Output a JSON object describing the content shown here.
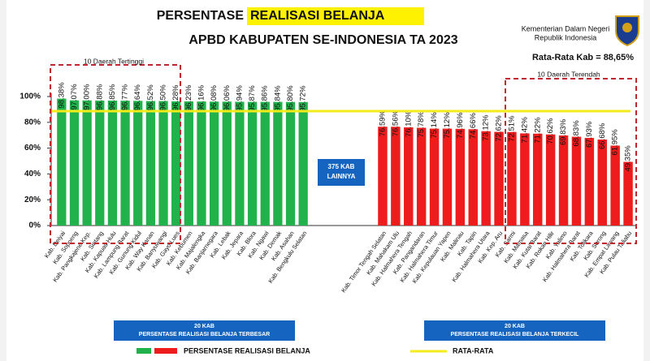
{
  "chart_data": {
    "type": "bar",
    "title": "PERSENTASE",
    "title_highlight": "REALISASI BELANJA",
    "subtitle": "APBD KABUPATEN SE-INDONESIA TA 2023",
    "org": [
      "Kementerian Dalam Negeri",
      "Republik Indonesia"
    ],
    "average": 88.65,
    "average_label": "Rata-Rata Kab = 88,65%",
    "average_color": "#f4ec1a",
    "ylim": [
      0,
      100
    ],
    "yticks": [
      {
        "value": 0,
        "label": "0%"
      },
      {
        "value": 20,
        "label": "20%"
      },
      {
        "value": 40,
        "label": "40%"
      },
      {
        "value": 60,
        "label": "60%"
      },
      {
        "value": 80,
        "label": "80%"
      },
      {
        "value": 100,
        "label": "100%"
      }
    ],
    "middle_note": [
      "375 KAB",
      "LAINNYA"
    ],
    "legend": [
      "PERSENTASE REALISASI BELANJA",
      "RATA-RATA"
    ],
    "groups": [
      {
        "color": "#22b24c",
        "highlight_label": "10 Daerah Tertinggi",
        "caption": [
          "20 KAB",
          "PERSENTASE REALISASI BELANJA TERBESAR"
        ],
        "categories": [
          "Kab. Deiyai",
          "Kab. Soppeng",
          "Kab. Pangkajene Kep.",
          "Kab. Sintang",
          "Kab. Kapuas Hulu",
          "Kab. Lampung Barat",
          "Kab. Gunung Kidul",
          "Kab. Way Kanan",
          "Kab. Banyuwangi",
          "Kab. Gayo Lues",
          "Kab. Kebumen",
          "Kab. Majalengka",
          "Kab. Banjarnegara",
          "Kab. Lebak",
          "Kab. Jepara",
          "Kab. Blora",
          "Kab. Ngawi",
          "Kab. Demak",
          "Kab. Asahan",
          "Kab. Bengkulu Selatan"
        ],
        "values": [
          98.38,
          97.07,
          97.0,
          96.88,
          96.85,
          96.77,
          96.64,
          96.52,
          96.5,
          96.28,
          96.23,
          96.16,
          96.08,
          96.06,
          95.94,
          95.87,
          95.86,
          95.84,
          95.8,
          95.72
        ],
        "value_labels": [
          "98.38%",
          "97.07%",
          "97.00%",
          "96.88%",
          "96.85%",
          "96.77%",
          "96.64%",
          "96.52%",
          "96.50%",
          "96.28%",
          "96.23%",
          "96.16%",
          "96.08%",
          "96.06%",
          "95.94%",
          "95.87%",
          "95.86%",
          "95.84%",
          "95.80%",
          "95.72%"
        ]
      },
      {
        "color": "#ee1c1c",
        "highlight_label": "10 Daerah Terendah",
        "caption": [
          "20 KAB",
          "PERSENTASE REALISASI BELANJA TERKECIL"
        ],
        "categories": [
          "Kab. Timor Tengah Selatan",
          "Kab. Mahakam Ulu",
          "Kab. Halmahera Tengah",
          "Kab. Pangandaran",
          "Kab. Halmahera Timur",
          "Kab. Kepulauan Yapen",
          "Kab. Malinau",
          "Kab. Tapin",
          "Kab. Halmahera Utara",
          "Kab. Kep. Aru",
          "Kab. Sarmi",
          "Kab. Mamasa",
          "Kab. Kutai Barat",
          "Kab. Rokan Hilir",
          "Kab. Yalimo",
          "Kab. Halmahera Barat",
          "Kab. Tolikara",
          "Kab. Sorong",
          "Kab. Empat Lawang",
          "Kab. Pulau Taliabu"
        ],
        "values": [
          76.59,
          76.56,
          76.1,
          75.78,
          75.14,
          75.12,
          74.96,
          74.66,
          73.12,
          72.62,
          72.51,
          71.42,
          71.22,
          70.62,
          69.83,
          68.83,
          67.93,
          66.68,
          61.95,
          49.35
        ],
        "value_labels": [
          "76.59%",
          "76.56%",
          "76.10%",
          "75.78%",
          "75.14%",
          "75.12%",
          "74.96%",
          "74.66%",
          "73.12%",
          "72.62%",
          "72.51%",
          "71.42%",
          "71.22%",
          "70.62%",
          "69.83%",
          "68.83%",
          "67.93%",
          "66.68%",
          "61.95%",
          "49.35%"
        ]
      }
    ]
  }
}
